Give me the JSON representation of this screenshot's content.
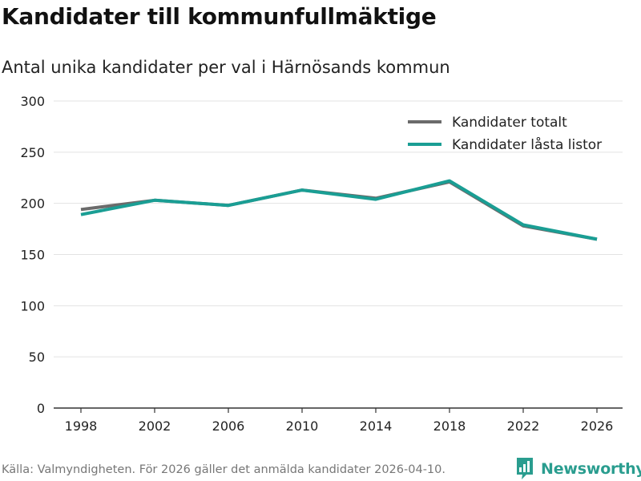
{
  "header": {
    "title": "Kandidater till kommunfullmäktige",
    "subtitle": "Antal unika kandidater per val i Härnösands kommun"
  },
  "footer": {
    "source": "Källa: Valmyndigheten. För 2026 gäller det anmälda kandidater 2026-04-10.",
    "brand": "Newsworthy"
  },
  "colors": {
    "brand": "#2a9d8f",
    "grid": "#e3e3e3",
    "axis": "#333333"
  },
  "chart_data": {
    "type": "line",
    "title": "Kandidater till kommunfullmäktige",
    "subtitle": "Antal unika kandidater per val i Härnösands kommun",
    "xlabel": "",
    "ylabel": "",
    "x": [
      1998,
      2002,
      2006,
      2010,
      2014,
      2018,
      2022,
      2026
    ],
    "ylim": [
      0,
      300
    ],
    "yticks": [
      0,
      50,
      100,
      150,
      200,
      250,
      300
    ],
    "grid": true,
    "legend_position": "top-right",
    "series": [
      {
        "name": "Kandidater totalt",
        "color": "#6b6b6b",
        "values": [
          194,
          203,
          198,
          213,
          205,
          221,
          178,
          165
        ]
      },
      {
        "name": "Kandidater låsta listor",
        "color": "#1a9e94",
        "values": [
          189,
          203,
          198,
          213,
          204,
          222,
          179,
          165
        ]
      }
    ]
  }
}
